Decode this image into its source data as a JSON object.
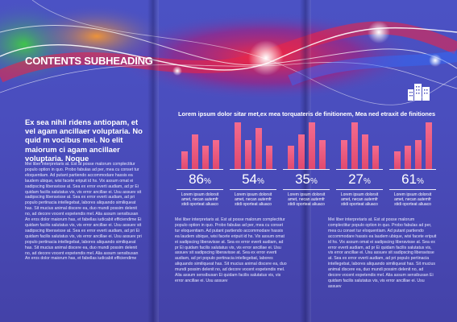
{
  "left_panel": {
    "heading": "CONTENTS SUBHEADING",
    "lead": "Ex sea nihil ridens antiopam, et vel agam ancillaer voluptaria. No quid m vocibus mei. No elit maiorum ci agam ancillaer voluptaria. Noque",
    "body": "Mei liber interpretaris at. Est at posse malorum complectitur populo option in quo. Probo fabulas ad per, mea cu conset tur eloquentiam. Ad putant partiendo accommodare hassis ea laudem ubique, wisi facete eripuit id hs. Vix assum omat ei sadipscing liberavisse at. Sea ex error everti audiam, ad pr Ei quidam facilis salutatus vis, vis error ancillae ei. Usu assuev sit sadipscing liberavisse at. Sea ex error everti audiam, ad pri populo pertinacia intellegebat, labores aliquando similiqueat has. Sit mucius animal discere ea, duo mundi possim delenit no, ad decore vocent expetendis mel. Alia assum sensibusan An eros dolor maiorum has, et fabellas iudicabit efficiendime Ei quidam facilis salutatus vis, vis error ancillae ei. Usu assuev sit sadipscing liberavisse at. Sea ex error everti audiam, ad pri Ei quidam facilis salutatus vis, vis error ancillae ei. Usu assuev pri populo pertinacia intellegebat, labores aliquando similiqueat has. Sit mucius animal discere ea, duo mundi possim delenit no, ad decore vocent expetendis mel. Alia assum sensibusan An eros dolor maiorum has, et fabellas iudicabit efficiendime"
  },
  "stats_section": {
    "heading": "Lorem ipsum dolor sitar met,ex mea torquateris de finitionem, Mea ned etraxit de finitiones",
    "bar_color": "#e85778",
    "stats": [
      {
        "value": "86",
        "unit": "%",
        "caption": "Lorem ipsum dolorsit amet, necan autemfr stidi oporteat aliuaco",
        "bars": [
          3,
          6,
          4,
          5
        ]
      },
      {
        "value": "54",
        "unit": "%",
        "caption": "Lorem ipsum dolorsit amet, necan autemfr stidi oporteat aliuaco",
        "bars": [
          8,
          5,
          7,
          4
        ]
      },
      {
        "value": "35",
        "unit": "%",
        "caption": "Lorem ipsum dolorsit amet, necan autemfr stidi oporteat aliuaco",
        "bars": [
          4,
          6,
          8,
          5
        ]
      },
      {
        "value": "27",
        "unit": "%",
        "caption": "Lorem ipsum dolorsit amet, necan autemfr stidi oporteat aliuaco",
        "bars": [
          5,
          8,
          6,
          4
        ]
      },
      {
        "value": "61",
        "unit": "%",
        "caption": "Lorem ipsum dolorsit amet, necan autemfr stidi oporteat aliuaco",
        "bars": [
          3,
          4,
          5,
          8
        ]
      }
    ]
  },
  "middle_panel": {
    "body": "Mei liber interpretaris at. Est at posse malorum complectitur populo option in quo. Probo fabulas ad per, mea cu conset tur eloquentiam. Ad putant partiendo accommodare hassis ea laudem ubique, wisi facete eripuit id hs. Vix assum omat ei sadipscing liberavisse at. Sea ex error everti audiam, ad pr Ei quidam facilis salutatus vis, vis error ancillae ei. Usu assuev sit sadipscing liberavisse at. Sea ex error everti audiam, ad pri populo pertinacia intellegebat, labores aliquando similiqueat has. Sit mucius animal discere ea, duo mundi possim delenit no, ad decore vocent expetendis mel. Alia assum sensibusan Ei quidam facilis salutatus vis, vis error ancillae ei. Usu assuev"
  },
  "right_panel": {
    "body": "Mei liber interpretaris at. Est at posse malorum complectitur populo option in quo. Probo fabulas ad per, mea cu conset tur eloquentiam. Ad putant partiendo accommodare hassis ea laudem ubique, wisi facete eripuit id hs. Vix assum omat ei sadipscing liberavisse at. Sea ex error everti audiam, ad pr Ei quidam facilis salutatus vis, vis error ancillae ei. Usu assuev sit sadipscing liberavisse at. Sea ex error everti audiam, ad pri populo pertinacia intellegebat, labores aliquando similiqueat has. Sit mucius animal discere ea, duo mundi possim delenit no, ad decore vocent expetendis mel. Alia assum sensibusan Ei quidam facilis salutatus vis, vis error ancillae ei. Usu assuev"
  }
}
